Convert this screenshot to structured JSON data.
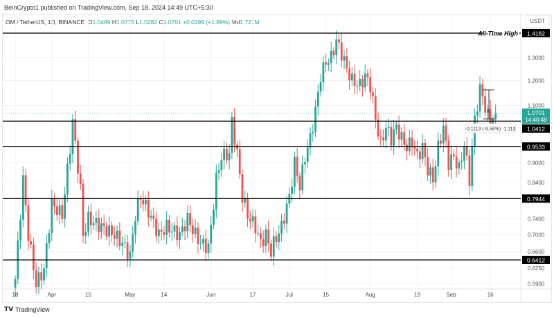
{
  "header": {
    "published": "BeInCrypto1 published on TradingView.com, Sep 18, 2024 14:49 UTC+5:30"
  },
  "legend": {
    "symbol": "OM / TetherUS, 1D, BINANCE",
    "o_label": "O",
    "o": "1.0499",
    "h_label": "H",
    "h": "1.0775",
    "l_label": "L",
    "l": "1.0282",
    "c_label": "C",
    "c": "1.0701",
    "change": "+0.0199 (+1.89%)",
    "vol_label": "Vol",
    "vol": "1.721M"
  },
  "currency": "USDT",
  "annotation_ath": "All-Time High",
  "measure_label": "-0.1113 (-9.58%) -1,113",
  "footer": {
    "brand": "TradingView"
  },
  "colors": {
    "up": "#26a69a",
    "down": "#ef5350",
    "level": "#000000"
  },
  "chart_data": {
    "type": "candlestick",
    "scale": "log",
    "ylim": [
      0.58,
      1.45
    ],
    "y_ticks": [
      "1.3000",
      "1.2000",
      "1.1000",
      "0.9000",
      "0.8400",
      "0.7400",
      "0.7000",
      "0.6600",
      "0.6250",
      "0.5900"
    ],
    "y_tick_values": [
      1.3,
      1.2,
      1.1,
      0.9,
      0.84,
      0.74,
      0.7,
      0.66,
      0.625,
      0.59
    ],
    "x_ticks": [
      {
        "label": "18",
        "day": 0
      },
      {
        "label": "Apr",
        "day": 14
      },
      {
        "label": "15",
        "day": 28
      },
      {
        "label": "May",
        "day": 44
      },
      {
        "label": "14",
        "day": 57
      },
      {
        "label": "Jun",
        "day": 75
      },
      {
        "label": "17",
        "day": 91
      },
      {
        "label": "Jul",
        "day": 105
      },
      {
        "label": "15",
        "day": 119
      },
      {
        "label": "Aug",
        "day": 136
      },
      {
        "label": "19",
        "day": 154
      },
      {
        "label": "Sep",
        "day": 167
      },
      {
        "label": "16",
        "day": 182
      }
    ],
    "levels": [
      {
        "value": 1.4162,
        "label": "1.4162"
      },
      {
        "value": 1.0412,
        "label": "1.0412"
      },
      {
        "value": 0.9533,
        "label": "0.9533"
      },
      {
        "value": 0.7944,
        "label": "0.7944"
      },
      {
        "value": 0.6412,
        "label": "0.6412"
      }
    ],
    "last_price": {
      "value": 1.0701,
      "label": "1.0701",
      "countdown": "14:40:48"
    },
    "close_keypoints": [
      [
        0,
        0.6
      ],
      [
        3,
        0.85
      ],
      [
        5,
        0.7
      ],
      [
        8,
        0.59
      ],
      [
        11,
        0.62
      ],
      [
        14,
        0.78
      ],
      [
        18,
        0.75
      ],
      [
        21,
        0.95
      ],
      [
        22,
        1.04
      ],
      [
        25,
        0.82
      ],
      [
        26,
        0.7
      ],
      [
        28,
        0.74
      ],
      [
        33,
        0.72
      ],
      [
        38,
        0.7
      ],
      [
        41,
        0.68
      ],
      [
        44,
        0.65
      ],
      [
        46,
        0.75
      ],
      [
        48,
        0.8
      ],
      [
        51,
        0.76
      ],
      [
        55,
        0.7
      ],
      [
        58,
        0.72
      ],
      [
        63,
        0.7
      ],
      [
        66,
        0.74
      ],
      [
        69,
        0.7
      ],
      [
        71,
        0.68
      ],
      [
        74,
        0.67
      ],
      [
        75,
        0.72
      ],
      [
        77,
        0.85
      ],
      [
        79,
        0.92
      ],
      [
        82,
        0.93
      ],
      [
        83,
        1.04
      ],
      [
        85,
        0.93
      ],
      [
        87,
        0.8
      ],
      [
        89,
        0.75
      ],
      [
        92,
        0.72
      ],
      [
        94,
        0.68
      ],
      [
        96,
        0.7
      ],
      [
        98,
        0.66
      ],
      [
        99,
        0.68
      ],
      [
        102,
        0.72
      ],
      [
        105,
        0.8
      ],
      [
        107,
        0.9
      ],
      [
        109,
        0.83
      ],
      [
        111,
        0.92
      ],
      [
        113,
        0.98
      ],
      [
        115,
        1.08
      ],
      [
        117,
        1.22
      ],
      [
        119,
        1.28
      ],
      [
        121,
        1.3
      ],
      [
        123,
        1.38
      ],
      [
        125,
        1.32
      ],
      [
        127,
        1.25
      ],
      [
        129,
        1.2
      ],
      [
        132,
        1.18
      ],
      [
        134,
        1.22
      ],
      [
        136,
        1.18
      ],
      [
        138,
        1.05
      ],
      [
        140,
        0.96
      ],
      [
        142,
        1.02
      ],
      [
        144,
        0.98
      ],
      [
        146,
        1.02
      ],
      [
        148,
        0.98
      ],
      [
        150,
        0.95
      ],
      [
        152,
        0.97
      ],
      [
        154,
        0.92
      ],
      [
        156,
        0.95
      ],
      [
        158,
        0.88
      ],
      [
        160,
        0.85
      ],
      [
        162,
        0.95
      ],
      [
        164,
        1.02
      ],
      [
        166,
        0.9
      ],
      [
        168,
        0.92
      ],
      [
        170,
        0.88
      ],
      [
        172,
        0.96
      ],
      [
        174,
        0.85
      ],
      [
        176,
        1.05
      ],
      [
        178,
        1.16
      ],
      [
        179,
        1.14
      ],
      [
        180,
        1.09
      ],
      [
        181,
        1.06
      ],
      [
        182,
        1.05
      ],
      [
        183,
        1.0502
      ],
      [
        184,
        1.0701
      ]
    ]
  }
}
